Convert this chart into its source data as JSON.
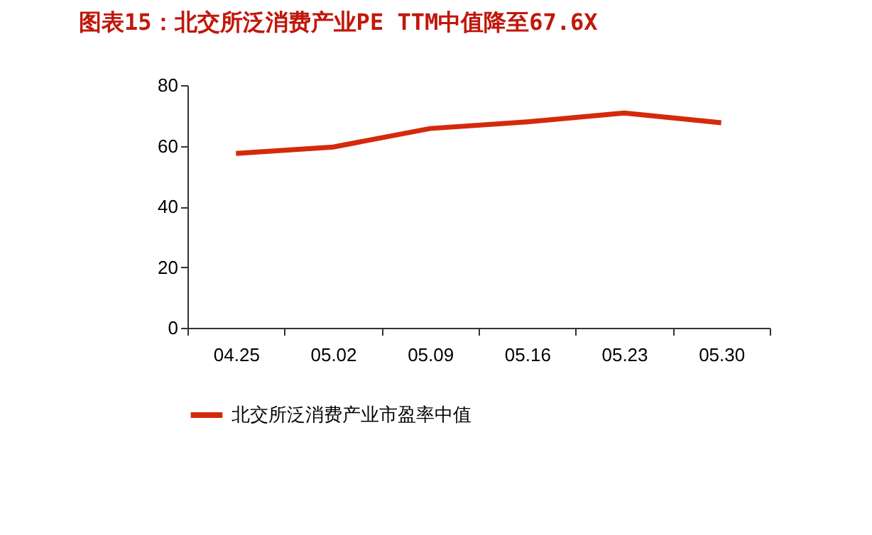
{
  "chart_data": {
    "type": "line",
    "title": "图表15：北交所泛消费产业PE TTM中值降至67.6X",
    "categories": [
      "04.25",
      "05.02",
      "05.09",
      "05.16",
      "05.23",
      "05.30"
    ],
    "series": [
      {
        "name": "北交所泛消费产业市盈率中值",
        "color": "#d42a0c",
        "values": [
          57.5,
          59.6,
          65.7,
          67.9,
          70.8,
          67.6
        ]
      }
    ],
    "ylim": [
      0,
      80
    ],
    "yticks": [
      0,
      20,
      40,
      60,
      80
    ],
    "grid": false,
    "legend": "bottom",
    "marker": "none",
    "line_style": "solid"
  }
}
